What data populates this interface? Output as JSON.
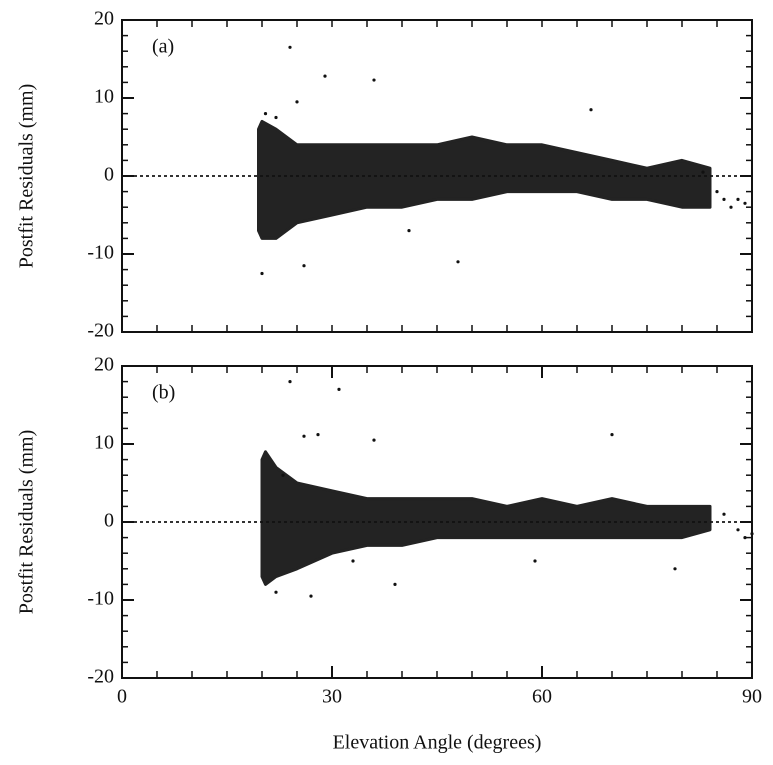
{
  "chart_data": [
    {
      "type": "scatter",
      "panel_label": "(a)",
      "ylabel": "Postfit Residuals (mm)",
      "xlim": [
        0,
        90
      ],
      "ylim": [
        -20,
        20
      ],
      "yticks": [
        -20,
        -10,
        0,
        10,
        20
      ],
      "xminor": [
        5,
        10,
        15,
        20,
        25,
        30,
        35,
        40,
        45,
        50,
        55,
        60,
        65,
        70,
        75,
        80,
        85
      ],
      "yminor": [
        -18,
        -16,
        -14,
        -12,
        -8,
        -6,
        -4,
        -2,
        2,
        4,
        6,
        8,
        12,
        14,
        16,
        18
      ],
      "reference_line": 0,
      "color": "#111111",
      "band": {
        "x": [
          19.5,
          20,
          22,
          25,
          30,
          35,
          40,
          45,
          50,
          55,
          60,
          65,
          70,
          75,
          80,
          84
        ],
        "upper": [
          6,
          7,
          6,
          4,
          4,
          4,
          4,
          4,
          5,
          4,
          4,
          3,
          2,
          1,
          2,
          1
        ],
        "lower": [
          -7,
          -8,
          -8,
          -6,
          -5,
          -4,
          -4,
          -3,
          -3,
          -2,
          -2,
          -2,
          -3,
          -3,
          -4,
          -4
        ]
      },
      "x": [
        24,
        29,
        36,
        25,
        67,
        20,
        26,
        48,
        87,
        88,
        89,
        20.5,
        22,
        41,
        85,
        86,
        83
      ],
      "values": [
        16.5,
        12.8,
        12.3,
        9.5,
        8.5,
        -12.5,
        -11.5,
        -11,
        -4,
        -3,
        -3.5,
        8,
        7.5,
        -7,
        -2,
        -3,
        0.5
      ]
    },
    {
      "type": "scatter",
      "panel_label": "(b)",
      "ylabel": "Postfit Residuals (mm)",
      "xlabel": "Elevation Angle (degrees)",
      "xlim": [
        0,
        90
      ],
      "ylim": [
        -20,
        20
      ],
      "yticks": [
        -20,
        -10,
        0,
        10,
        20
      ],
      "xticks": [
        0,
        30,
        60,
        90
      ],
      "xminor": [
        5,
        10,
        15,
        20,
        25,
        35,
        40,
        45,
        50,
        55,
        65,
        70,
        75,
        80,
        85
      ],
      "yminor": [
        -18,
        -16,
        -14,
        -12,
        -8,
        -6,
        -4,
        -2,
        2,
        4,
        6,
        8,
        12,
        14,
        16,
        18
      ],
      "reference_line": 0,
      "color": "#111111",
      "band": {
        "x": [
          20,
          20.5,
          22,
          25,
          30,
          35,
          40,
          45,
          50,
          55,
          60,
          65,
          70,
          75,
          80,
          84
        ],
        "upper": [
          8,
          9,
          7,
          5,
          4,
          3,
          3,
          3,
          3,
          2,
          3,
          2,
          3,
          2,
          2,
          2
        ],
        "lower": [
          -7,
          -8,
          -7,
          -6,
          -4,
          -3,
          -3,
          -2,
          -2,
          -2,
          -2,
          -2,
          -2,
          -2,
          -2,
          -1
        ]
      },
      "x": [
        24,
        31,
        26,
        28,
        36,
        70,
        23,
        27,
        39,
        59,
        79,
        86,
        88,
        89,
        90,
        22,
        33
      ],
      "values": [
        18,
        17,
        11,
        11.2,
        10.5,
        11.2,
        6,
        -9.5,
        -8,
        -5,
        -6,
        1,
        -1,
        -2,
        -1.5,
        -9,
        -5
      ]
    }
  ]
}
